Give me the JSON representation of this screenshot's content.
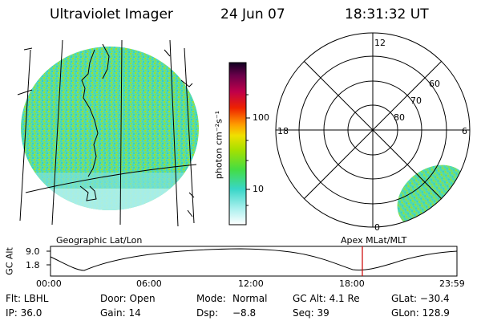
{
  "header": {
    "instrument": "Ultraviolet Imager",
    "date": "24 Jun 07",
    "time": "18:31:32 UT"
  },
  "colorbar": {
    "unit_label": "photon cm⁻²s⁻¹",
    "ticks": [
      "100",
      "10"
    ],
    "scale": "log"
  },
  "polar_plot": {
    "hour_labels": [
      "12",
      "18",
      "6",
      "0"
    ],
    "lat_labels": [
      "60",
      "70",
      "80"
    ]
  },
  "timeline": {
    "left_label": "Geographic Lat/Lon",
    "right_label": "Apex  MLat/MLT",
    "ylabel": "GC Alt",
    "y_ticks": [
      "9.0",
      "1.8"
    ],
    "x_ticks": [
      "00:00",
      "06:00",
      "12:00",
      "18:00",
      "23:59"
    ],
    "marker_color": "#cc0000"
  },
  "info": {
    "row1": {
      "filter": "Flt: LBHL",
      "door": "Door: Open",
      "mode_label": "Mode:",
      "mode_value": "Normal",
      "gc_alt": "GC Alt: 4.1 Re",
      "glat": "GLat: −30.4"
    },
    "row2": {
      "ip": "IP: 36.0",
      "gain": "Gain: 14",
      "dsp_label": "Dsp:",
      "dsp_value": "−8.8",
      "seq": "Seq: 39",
      "glon": "GLon: 128.9"
    }
  },
  "colors": {
    "low": "#3fd9c8",
    "mid": "#8fdc2a",
    "bright": "#a8e000",
    "frame": "#000000"
  }
}
